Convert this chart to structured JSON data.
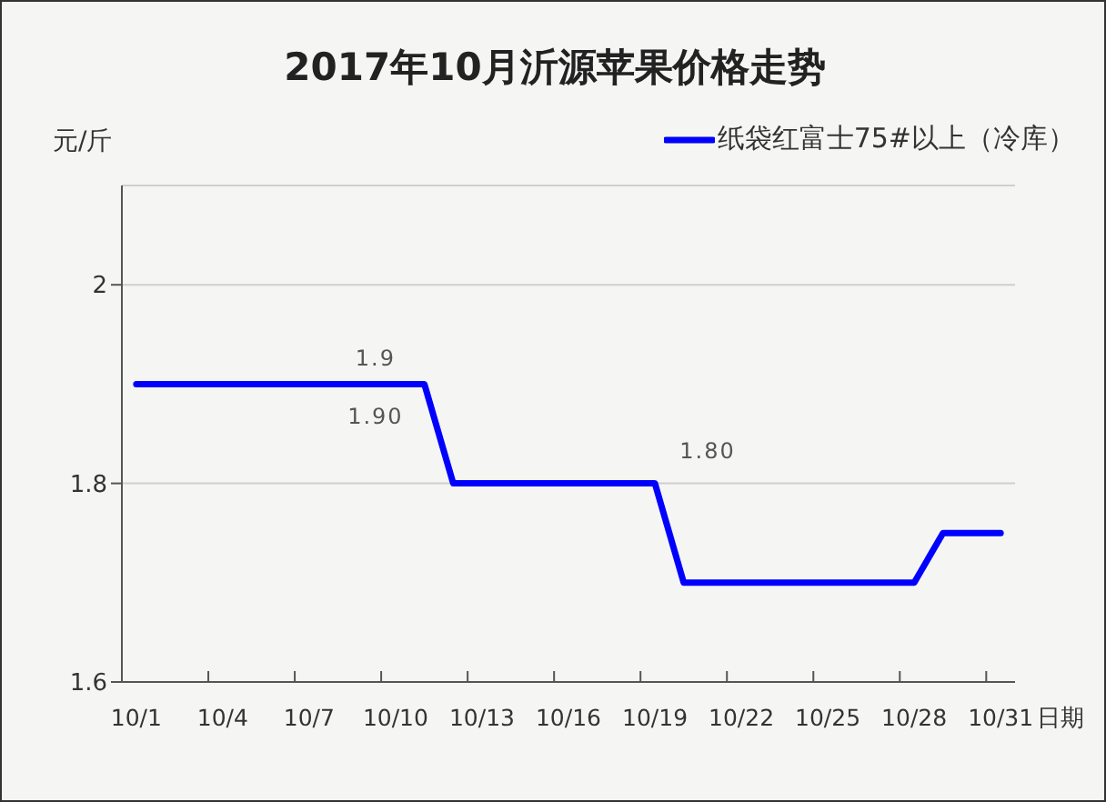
{
  "chart_data": {
    "type": "line",
    "title": "2017年10月沂源苹果价格走势",
    "xlabel": "日期",
    "ylabel": "元/斤",
    "categories": [
      "10/1",
      null,
      null,
      "10/4",
      null,
      null,
      "10/7",
      null,
      null,
      "10/10",
      null,
      null,
      "10/13",
      null,
      null,
      "10/16",
      null,
      null,
      "10/19",
      null,
      null,
      "10/22",
      null,
      null,
      "10/25",
      null,
      null,
      "10/28",
      null,
      null,
      "10/31"
    ],
    "series": [
      {
        "name": "纸袋红富士75#以上（冷库）",
        "color": "#0000ff",
        "values": [
          1.9,
          1.9,
          1.9,
          1.9,
          1.9,
          1.9,
          1.9,
          1.9,
          1.9,
          1.9,
          1.9,
          1.8,
          1.8,
          1.8,
          1.8,
          1.8,
          1.8,
          1.8,
          1.8,
          1.7,
          1.7,
          1.7,
          1.7,
          1.7,
          1.7,
          1.7,
          1.7,
          1.7,
          1.75,
          1.75,
          1.75
        ]
      }
    ],
    "ylim": [
      1.6,
      2.1
    ],
    "yticks": [
      1.6,
      1.8,
      2
    ],
    "grid": "y",
    "legend": "top right",
    "line_style": "solid",
    "annotations": [
      {
        "text": "1.9",
        "x": "10/10",
        "y": 1.9
      },
      {
        "text": "1.90",
        "x": "10/10",
        "y": 1.9
      },
      {
        "text": "1.80",
        "x": "10/19",
        "y": 1.8
      }
    ]
  }
}
